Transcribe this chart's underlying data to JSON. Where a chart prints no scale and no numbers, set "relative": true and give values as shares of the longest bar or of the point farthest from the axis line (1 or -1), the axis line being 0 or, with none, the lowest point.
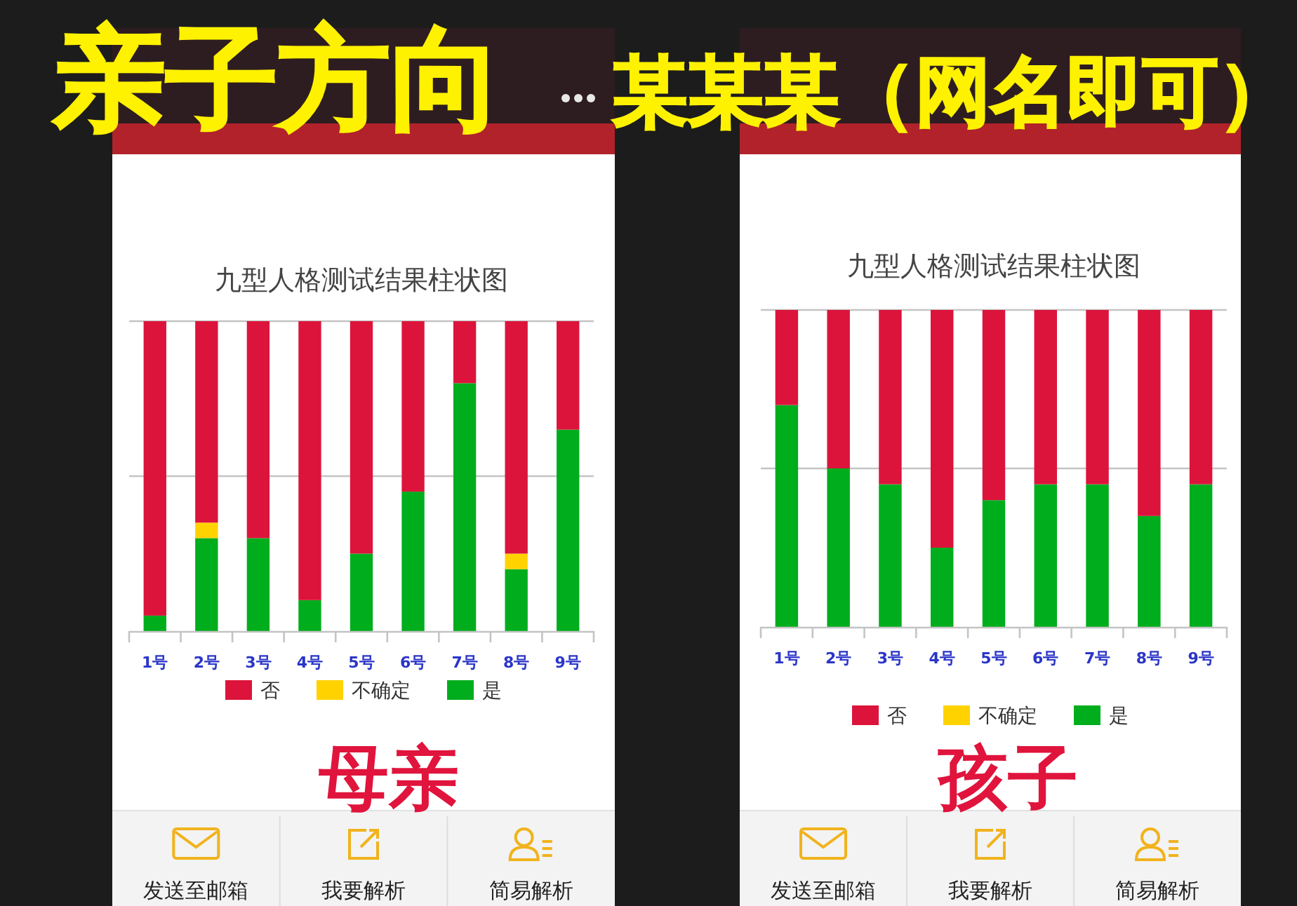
{
  "chart_data": [
    {
      "type": "bar",
      "title": "九型人格测试结果柱状图",
      "categories": [
        "1号",
        "2号",
        "3号",
        "4号",
        "5号",
        "6号",
        "7号",
        "8号",
        "9号"
      ],
      "stacked": true,
      "relative": true,
      "series": [
        {
          "name": "是",
          "color": "#00ad1d",
          "values": [
            0.05,
            0.3,
            0.3,
            0.1,
            0.25,
            0.45,
            0.8,
            0.2,
            0.65
          ]
        },
        {
          "name": "不确定",
          "color": "#ffd200",
          "values": [
            0,
            0.05,
            0,
            0,
            0,
            0,
            0,
            0.05,
            0
          ]
        },
        {
          "name": "否",
          "color": "#dc143c",
          "values": [
            0.95,
            0.65,
            0.7,
            0.9,
            0.75,
            0.55,
            0.2,
            0.75,
            0.35
          ]
        }
      ],
      "ref_lines": [
        {
          "axis": "y",
          "value": 0.5,
          "color": "#c4c4c4"
        },
        {
          "axis": "y",
          "value": 1,
          "color": "#c4c4c4"
        }
      ],
      "tick_labels": "x",
      "legend": "bottom",
      "annotations": [
        "亲子方向",
        "母亲",
        "发送至邮箱",
        "我要解析",
        "简易解析"
      ]
    },
    {
      "type": "bar",
      "title": "九型人格测试结果柱状图",
      "categories": [
        "1号",
        "2号",
        "3号",
        "4号",
        "5号",
        "6号",
        "7号",
        "8号",
        "9号"
      ],
      "stacked": true,
      "relative": true,
      "series": [
        {
          "name": "是",
          "color": "#00ad1d",
          "values": [
            0.7,
            0.5,
            0.45,
            0.25,
            0.4,
            0.45,
            0.45,
            0.35,
            0.45
          ]
        },
        {
          "name": "不确定",
          "color": "#ffd200",
          "values": [
            0,
            0,
            0,
            0,
            0,
            0,
            0,
            0,
            0
          ]
        },
        {
          "name": "否",
          "color": "#dc143c",
          "values": [
            0.3,
            0.5,
            0.55,
            0.75,
            0.6,
            0.55,
            0.55,
            0.65,
            0.55
          ]
        }
      ],
      "ref_lines": [
        {
          "axis": "y",
          "value": 0.5,
          "color": "#c4c4c4"
        },
        {
          "axis": "y",
          "value": 1,
          "color": "#c4c4c4"
        }
      ],
      "tick_labels": "x",
      "legend": "bottom",
      "annotations": [
        "某某某（网名即可）",
        "孩子",
        "发送至邮箱",
        "我要解析",
        "简易解析"
      ]
    }
  ]
}
